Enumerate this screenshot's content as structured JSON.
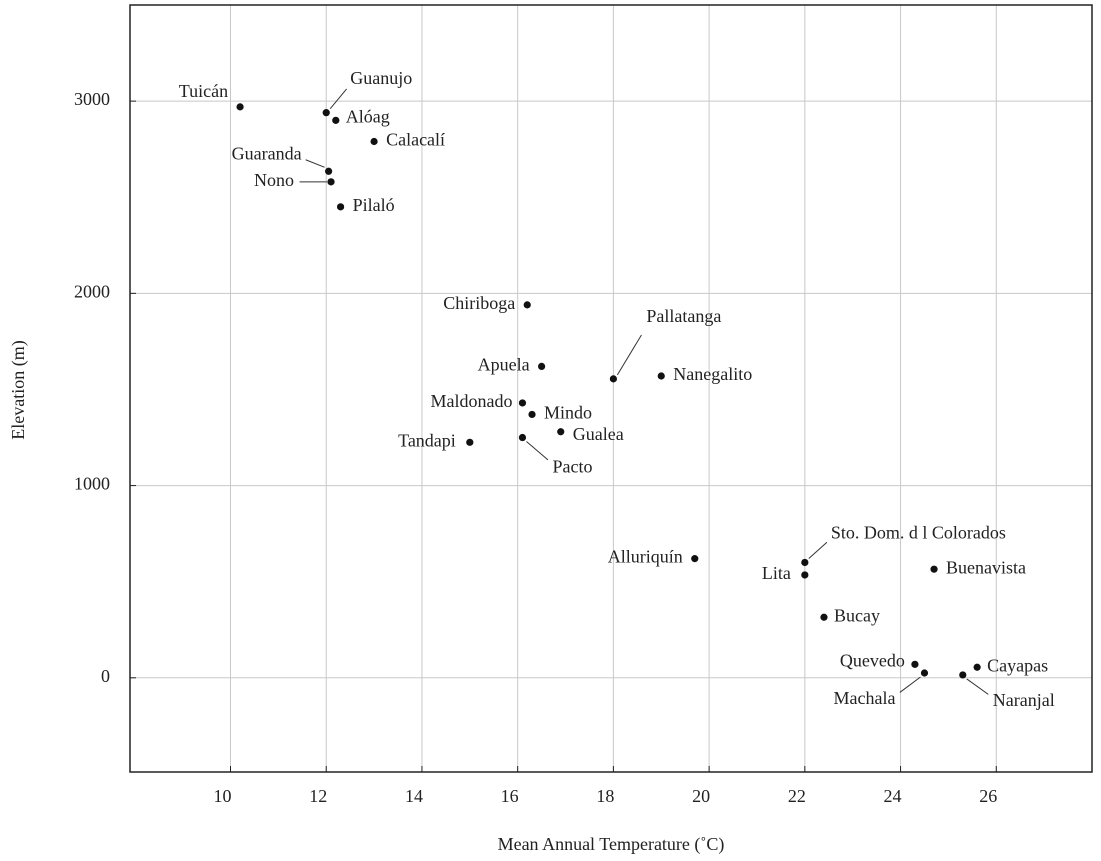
{
  "chart_data": {
    "type": "scatter",
    "x_label": "Mean Annual Temperature (˚C)",
    "y_label": "Elevation (m)",
    "labels": [
      "Tuicán",
      "Guanujo",
      "Alóag",
      "Calacalí",
      "Guaranda",
      "Nono",
      "Pilaló",
      "Chiriboga",
      "Apuela",
      "Pallatanga",
      "Nanegalito",
      "Maldonado",
      "Mindo",
      "Gualea",
      "Tandapi",
      "Pacto",
      "Alluriquín",
      "Sto. Dom. d l Colorados",
      "Lita",
      "Buenavista",
      "Bucay",
      "Quevedo",
      "Machala",
      "Cayapas",
      "Naranjal"
    ],
    "x": [
      10.2,
      12.0,
      12.2,
      13.0,
      12.05,
      12.1,
      12.3,
      16.2,
      16.5,
      18.0,
      19.0,
      16.1,
      16.3,
      16.9,
      15.0,
      16.1,
      19.7,
      22.0,
      22.0,
      24.7,
      22.4,
      24.3,
      24.5,
      25.6,
      25.3
    ],
    "values": [
      2970,
      2940,
      2900,
      2790,
      2635,
      2580,
      2450,
      1940,
      1620,
      1555,
      1570,
      1430,
      1370,
      1280,
      1225,
      1250,
      620,
      600,
      535,
      565,
      315,
      70,
      25,
      55,
      15
    ],
    "color": "#111111",
    "xlim": [
      7.9,
      28.0
    ],
    "xticks": [
      10,
      12,
      14,
      16,
      18,
      20,
      22,
      24,
      26
    ],
    "ylim": [
      -490,
      3500
    ],
    "yticks": [
      0,
      1000,
      2000,
      3000
    ],
    "grid": true
  }
}
